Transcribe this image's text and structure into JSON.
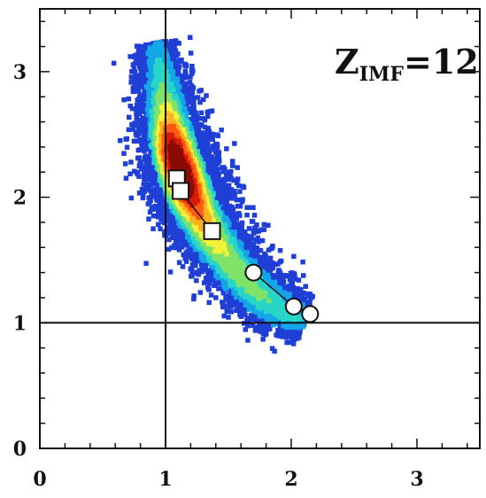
{
  "chart_data": {
    "type": "scatter",
    "title": "",
    "xlabel": "",
    "ylabel": "",
    "xlim": [
      0,
      3.5
    ],
    "ylim": [
      0,
      3.5
    ],
    "x_ticks": [
      "0",
      "1",
      "2",
      "3"
    ],
    "y_ticks": [
      "0",
      "1",
      "2",
      "3"
    ],
    "annotation": {
      "main": "Z",
      "sub": "IMF",
      "suffix": "=12"
    },
    "reference_lines": {
      "x": 1,
      "y": 1
    },
    "density_scale": [
      "#1f3fd6",
      "#14a6e6",
      "#28d6c8",
      "#7fe36a",
      "#f2f23a",
      "#ffb020",
      "#ff5a10",
      "#d71a0a",
      "#8a0b05"
    ],
    "density_ridge": [
      {
        "x": 0.92,
        "y": 3.22,
        "w": 0.16,
        "d": 0.1
      },
      {
        "x": 0.95,
        "y": 3.05,
        "w": 0.2,
        "d": 0.2
      },
      {
        "x": 0.98,
        "y": 2.85,
        "w": 0.24,
        "d": 0.3
      },
      {
        "x": 1.02,
        "y": 2.62,
        "w": 0.27,
        "d": 0.55
      },
      {
        "x": 1.06,
        "y": 2.4,
        "w": 0.3,
        "d": 0.9
      },
      {
        "x": 1.12,
        "y": 2.22,
        "w": 0.31,
        "d": 1.0
      },
      {
        "x": 1.18,
        "y": 2.05,
        "w": 0.31,
        "d": 0.9
      },
      {
        "x": 1.26,
        "y": 1.88,
        "w": 0.3,
        "d": 0.65
      },
      {
        "x": 1.36,
        "y": 1.7,
        "w": 0.29,
        "d": 0.5
      },
      {
        "x": 1.48,
        "y": 1.52,
        "w": 0.28,
        "d": 0.4
      },
      {
        "x": 1.62,
        "y": 1.35,
        "w": 0.27,
        "d": 0.36
      },
      {
        "x": 1.78,
        "y": 1.2,
        "w": 0.26,
        "d": 0.3
      },
      {
        "x": 1.95,
        "y": 1.08,
        "w": 0.24,
        "d": 0.22
      },
      {
        "x": 2.12,
        "y": 1.02,
        "w": 0.2,
        "d": 0.15
      }
    ],
    "series": [
      {
        "marker": "square",
        "points": [
          [
            1.09,
            2.15
          ],
          [
            1.12,
            2.05
          ],
          [
            1.37,
            1.73
          ]
        ]
      },
      {
        "marker": "circle",
        "points": [
          [
            1.7,
            1.4
          ],
          [
            2.02,
            1.13
          ],
          [
            2.15,
            1.07
          ]
        ]
      }
    ]
  }
}
